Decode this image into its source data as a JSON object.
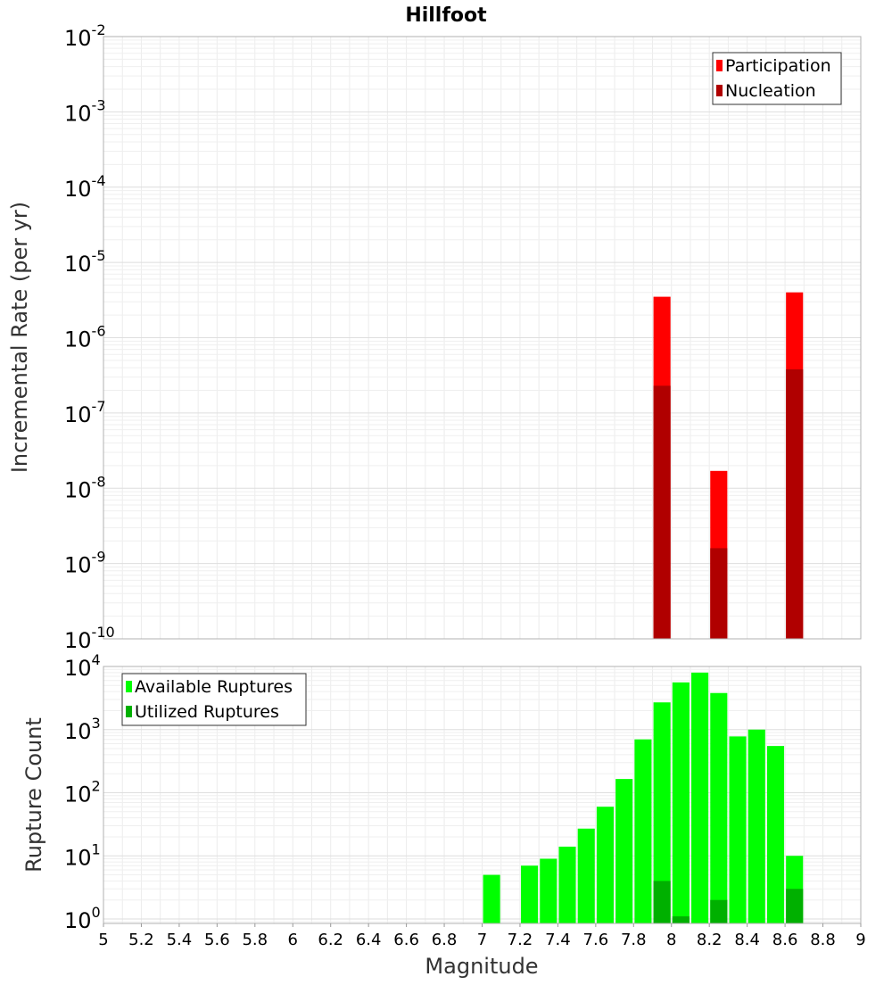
{
  "chart_data": [
    {
      "type": "bar",
      "title": "Hillfoot",
      "ylabel": "Incremental Rate (per yr)",
      "xlabel": "",
      "yscale": "log",
      "ylim": [
        1e-10,
        0.01
      ],
      "xlim": [
        5,
        9
      ],
      "y_ticks": [
        {
          "base": "10",
          "exp": "-10"
        },
        {
          "base": "10",
          "exp": "-9"
        },
        {
          "base": "10",
          "exp": "-8"
        },
        {
          "base": "10",
          "exp": "-7"
        },
        {
          "base": "10",
          "exp": "-6"
        },
        {
          "base": "10",
          "exp": "-5"
        },
        {
          "base": "10",
          "exp": "-4"
        },
        {
          "base": "10",
          "exp": "-3"
        },
        {
          "base": "10",
          "exp": "-2"
        }
      ],
      "grid": true,
      "legend_position": "top-right",
      "bar_width": 0.09,
      "series": [
        {
          "name": "Participation",
          "color": "#ff0000",
          "x": [
            7.95,
            8.25,
            8.65
          ],
          "values": [
            3.5e-06,
            1.7e-08,
            4e-06
          ]
        },
        {
          "name": "Nucleation",
          "color": "#b00000",
          "x": [
            7.95,
            8.25,
            8.65
          ],
          "values": [
            2.3e-07,
            1.6e-09,
            3.8e-07
          ]
        }
      ]
    },
    {
      "type": "bar",
      "title": "",
      "ylabel": "Rupture Count",
      "xlabel": "Magnitude",
      "yscale": "log",
      "ylim": [
        0.85,
        10000
      ],
      "xlim": [
        5,
        9
      ],
      "y_ticks": [
        {
          "base": "10",
          "exp": "0"
        },
        {
          "base": "10",
          "exp": "1"
        },
        {
          "base": "10",
          "exp": "2"
        },
        {
          "base": "10",
          "exp": "3"
        },
        {
          "base": "10",
          "exp": "4"
        }
      ],
      "x_ticks": [
        "5",
        "5.2",
        "5.4",
        "5.6",
        "5.8",
        "6",
        "6.2",
        "6.4",
        "6.6",
        "6.8",
        "7",
        "7.2",
        "7.4",
        "7.6",
        "7.8",
        "8",
        "8.2",
        "8.4",
        "8.6",
        "8.8",
        "9"
      ],
      "grid": true,
      "legend_position": "top-left",
      "bar_width": 0.09,
      "series": [
        {
          "name": "Available Ruptures",
          "color": "#00ff00",
          "x": [
            7.05,
            7.25,
            7.35,
            7.45,
            7.55,
            7.65,
            7.75,
            7.85,
            7.95,
            8.05,
            8.15,
            8.25,
            8.35,
            8.45,
            8.55,
            8.65
          ],
          "values": [
            5,
            7,
            9,
            14,
            27,
            60,
            165,
            700,
            2700,
            5600,
            8000,
            3800,
            780,
            1000,
            550,
            10
          ]
        },
        {
          "name": "Utilized Ruptures",
          "color": "#00b000",
          "x": [
            7.95,
            8.05,
            8.25,
            8.65
          ],
          "values": [
            4,
            1.1,
            2,
            3
          ]
        }
      ]
    }
  ]
}
